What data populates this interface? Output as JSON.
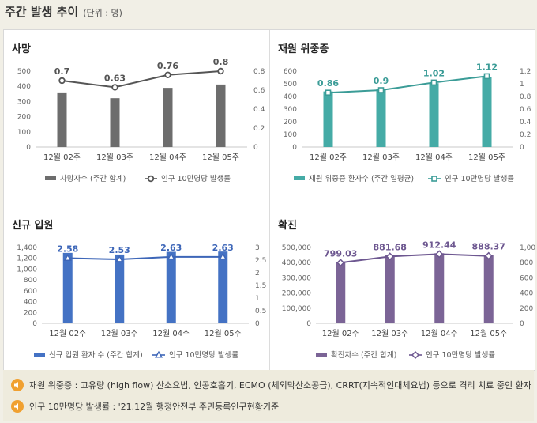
{
  "header": {
    "title": "주간 발생 추이",
    "unit": "(단위 : 명)"
  },
  "chart_data": [
    {
      "type": "bar",
      "title": "사망",
      "categories": [
        "12월 02주",
        "12월 03주",
        "12월 04주",
        "12월 05주"
      ],
      "series": [
        {
          "name": "사망자수 (주간 합계)",
          "type": "bar",
          "axis": "left",
          "values": [
            360,
            322,
            390,
            412
          ],
          "color": "#6d6d6d"
        },
        {
          "name": "인구 10만명당 발생률",
          "type": "line",
          "axis": "right",
          "values": [
            0.7,
            0.63,
            0.76,
            0.8
          ],
          "labels": [
            "0.7",
            "0.63",
            "0.76",
            "0.8"
          ],
          "color": "#555555"
        }
      ],
      "left_axis": {
        "min": 0,
        "max": 500,
        "ticks": [
          "0",
          "100",
          "200",
          "300",
          "400",
          "500"
        ]
      },
      "right_axis": {
        "min": 0,
        "max": 0.8,
        "ticks": [
          "0",
          "0.2",
          "0.4",
          "0.6",
          "0.8"
        ]
      },
      "marker": "circle",
      "label_color": "#555555"
    },
    {
      "type": "bar",
      "title": "재원 위중증",
      "categories": [
        "12월 02주",
        "12월 03주",
        "12월 04주",
        "12월 05주"
      ],
      "series": [
        {
          "name": "재원 위중증 환자수 (주간 일평균)",
          "type": "bar",
          "axis": "left",
          "values": [
            440,
            458,
            505,
            550
          ],
          "color": "#45aba6"
        },
        {
          "name": "인구 10만명당 발생률",
          "type": "line",
          "axis": "right",
          "values": [
            0.86,
            0.9,
            1.02,
            1.12
          ],
          "labels": [
            "0.86",
            "0.9",
            "1.02",
            "1.12"
          ],
          "color": "#3b9c97"
        }
      ],
      "left_axis": {
        "min": 0,
        "max": 600,
        "ticks": [
          "0",
          "100",
          "200",
          "300",
          "400",
          "500",
          "600"
        ]
      },
      "right_axis": {
        "min": 0,
        "max": 1.2,
        "ticks": [
          "0",
          "0.2",
          "0.4",
          "0.6",
          "0.8",
          "1",
          "1.2"
        ]
      },
      "marker": "square",
      "label_color": "#3b9c97"
    },
    {
      "type": "bar",
      "title": "신규 입원",
      "categories": [
        "12월 02주",
        "12월 03주",
        "12월 04주",
        "12월 05주"
      ],
      "series": [
        {
          "name": "신규 입원 환자 수 (주간 합계)",
          "type": "bar",
          "axis": "left",
          "values": [
            1300,
            1270,
            1320,
            1325
          ],
          "color": "#4472c4"
        },
        {
          "name": "인구 10만명당 발생률",
          "type": "line",
          "axis": "right",
          "values": [
            2.58,
            2.53,
            2.63,
            2.63
          ],
          "labels": [
            "2.58",
            "2.53",
            "2.63",
            "2.63"
          ],
          "color": "#3d66b8"
        }
      ],
      "left_axis": {
        "min": 0,
        "max": 1400,
        "ticks": [
          "0",
          "200",
          "400",
          "600",
          "800",
          "1,000",
          "1,200",
          "1,400"
        ]
      },
      "right_axis": {
        "min": 0,
        "max": 3,
        "ticks": [
          "0",
          "0.5",
          "1",
          "1.5",
          "2",
          "2.5",
          "3"
        ]
      },
      "marker": "triangle",
      "label_color": "#3d66b8"
    },
    {
      "type": "bar",
      "title": "확진",
      "categories": [
        "12월 02주",
        "12월 03주",
        "12월 04주",
        "12월 05주"
      ],
      "series": [
        {
          "name": "확진자수 (주간 합계)",
          "type": "bar",
          "axis": "left",
          "values": [
            405000,
            448000,
            462000,
            451000
          ],
          "color": "#7b6496"
        },
        {
          "name": "인구 10만명당 발생률",
          "type": "line",
          "axis": "right",
          "values": [
            799.03,
            881.68,
            912.44,
            888.37
          ],
          "labels": [
            "799.03",
            "881.68",
            "912.44",
            "888.37"
          ],
          "color": "#6d5790"
        }
      ],
      "left_axis": {
        "min": 0,
        "max": 500000,
        "ticks": [
          "0",
          "100,000",
          "200,000",
          "300,000",
          "400,000",
          "500,000"
        ]
      },
      "right_axis": {
        "min": 0,
        "max": 1000,
        "ticks": [
          "0",
          "200",
          "400",
          "600",
          "800",
          "1,000"
        ]
      },
      "marker": "diamond",
      "label_color": "#6d5790"
    }
  ],
  "footer": {
    "notes": [
      "재원 위중증 : 고유량 (high flow) 산소요법, 인공호흡기, ECMO (체외막산소공급), CRRT(지속적인대체요법) 등으로 격리 치료 중인 환자",
      "인구 10만명당 발생률 : '21.12월 행정안전부 주민등록인구현황기준"
    ]
  }
}
